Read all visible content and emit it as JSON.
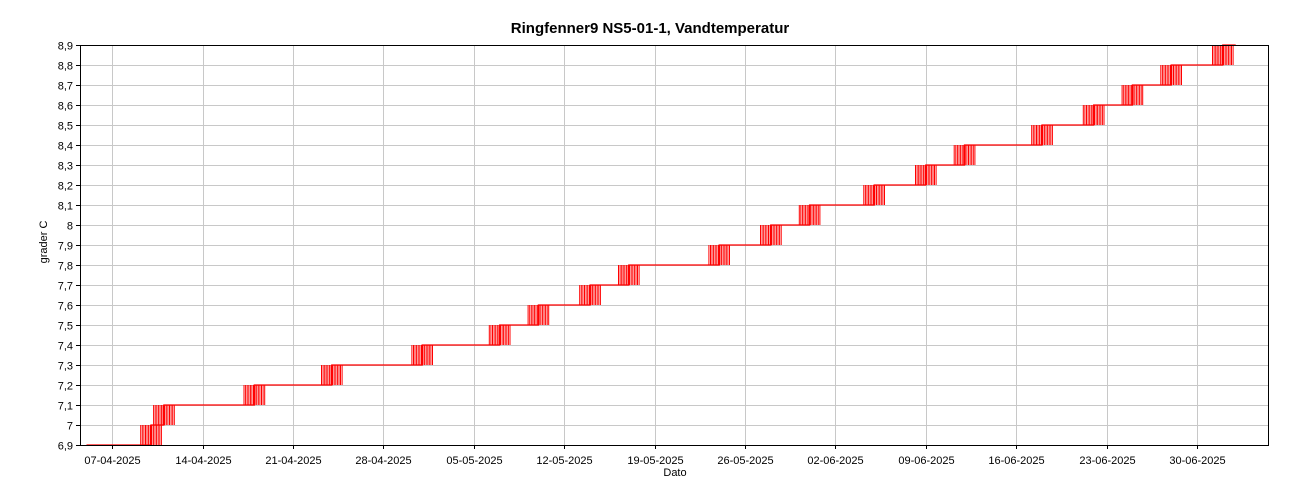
{
  "chart_data": {
    "type": "line",
    "title": "Ringfenner9 NS5-01-1, Vandtemperatur",
    "xlabel": "Dato",
    "ylabel": "grader C",
    "ylim": [
      6.9,
      8.9
    ],
    "yticks": [
      "6,9",
      "7",
      "7,1",
      "7,2",
      "7,3",
      "7,4",
      "7,5",
      "7,6",
      "7,7",
      "7,8",
      "7,9",
      "8",
      "8,1",
      "8,2",
      "8,3",
      "8,4",
      "8,5",
      "8,6",
      "8,7",
      "8,8",
      "8,9"
    ],
    "xticks": [
      "07-04-2025",
      "14-04-2025",
      "21-04-2025",
      "28-04-2025",
      "05-05-2025",
      "12-05-2025",
      "19-05-2025",
      "26-05-2025",
      "02-06-2025",
      "09-06-2025",
      "16-06-2025",
      "23-06-2025",
      "30-06-2025"
    ],
    "grid": true,
    "series": [
      {
        "color": "#ff0000",
        "x": [
          "2025-04-05",
          "2025-04-10",
          "2025-04-11",
          "2025-04-16",
          "2025-04-18",
          "2025-04-20",
          "2025-04-22",
          "2025-04-24",
          "2025-04-25",
          "2025-04-28",
          "2025-04-30",
          "2025-05-01",
          "2025-05-05",
          "2025-05-07",
          "2025-05-08",
          "2025-05-10",
          "2025-05-11",
          "2025-05-14",
          "2025-05-16",
          "2025-05-17",
          "2025-05-20",
          "2025-05-21",
          "2025-05-24",
          "2025-05-26",
          "2025-05-28",
          "2025-05-30",
          "2025-05-31",
          "2025-06-04",
          "2025-06-05",
          "2025-06-07",
          "2025-06-09",
          "2025-06-11",
          "2025-06-12",
          "2025-06-16",
          "2025-06-18",
          "2025-06-20",
          "2025-06-22",
          "2025-06-24",
          "2025-06-25",
          "2025-06-27",
          "2025-06-28",
          "2025-07-01",
          "2025-07-02",
          "2025-07-03"
        ],
        "values": [
          6.9,
          7.0,
          7.1,
          7.1,
          7.2,
          7.2,
          7.2,
          7.3,
          7.3,
          7.3,
          7.3,
          7.4,
          7.4,
          7.5,
          7.5,
          7.6,
          7.6,
          7.7,
          7.7,
          7.8,
          7.8,
          7.8,
          7.9,
          7.9,
          8.0,
          8.0,
          8.1,
          8.1,
          8.2,
          8.2,
          8.3,
          8.3,
          8.4,
          8.4,
          8.5,
          8.5,
          8.6,
          8.6,
          8.7,
          8.7,
          8.8,
          8.8,
          8.9,
          8.9
        ]
      }
    ]
  }
}
